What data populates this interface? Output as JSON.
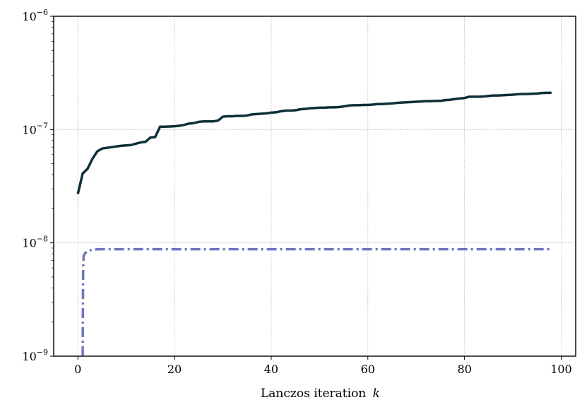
{
  "chart_data": {
    "type": "line",
    "title": "",
    "xlabel": "Lanczos iteration",
    "xlabel_var": "k",
    "ylabel": "",
    "xlim": [
      -5,
      103
    ],
    "ylim": [
      1e-09,
      1e-06
    ],
    "yscale": "log",
    "grid": true,
    "x_ticks": [
      0,
      20,
      40,
      60,
      80,
      100
    ],
    "x_tick_labels": [
      "0",
      "20",
      "40",
      "60",
      "80",
      "100"
    ],
    "y_ticks": [
      {
        "value": 1e-09,
        "base": "10",
        "exp": "−9"
      },
      {
        "value": 1e-08,
        "base": "10",
        "exp": "−8"
      },
      {
        "value": 1e-07,
        "base": "10",
        "exp": "−7"
      },
      {
        "value": 1e-06,
        "base": "10",
        "exp": "−6"
      }
    ],
    "series": [
      {
        "color": "#0d2f38",
        "style": "solid",
        "x": [
          0,
          1,
          2,
          3,
          4,
          5,
          6,
          7,
          8,
          9,
          10,
          11,
          12,
          13,
          14,
          15,
          16,
          17,
          18,
          19,
          20,
          21,
          22,
          23,
          24,
          25,
          26,
          27,
          28,
          29,
          30,
          31,
          32,
          33,
          34,
          35,
          36,
          37,
          38,
          39,
          40,
          41,
          42,
          43,
          44,
          45,
          46,
          47,
          48,
          49,
          50,
          51,
          52,
          53,
          54,
          55,
          56,
          57,
          58,
          59,
          60,
          61,
          62,
          63,
          64,
          65,
          66,
          67,
          68,
          69,
          70,
          71,
          72,
          73,
          74,
          75,
          76,
          77,
          78,
          79,
          80,
          81,
          82,
          83,
          84,
          85,
          86,
          87,
          88,
          89,
          90,
          91,
          92,
          93,
          94,
          95,
          96,
          97,
          98
        ],
        "y": [
          2.7e-08,
          4.1e-08,
          4.5e-08,
          5.5e-08,
          6.4e-08,
          6.8e-08,
          6.9e-08,
          7e-08,
          7.1e-08,
          7.2e-08,
          7.25e-08,
          7.3e-08,
          7.5e-08,
          7.7e-08,
          7.8e-08,
          8.5e-08,
          8.6e-08,
          1.06e-07,
          1.06e-07,
          1.065e-07,
          1.07e-07,
          1.08e-07,
          1.1e-07,
          1.13e-07,
          1.14e-07,
          1.17e-07,
          1.18e-07,
          1.18e-07,
          1.18e-07,
          1.2e-07,
          1.3e-07,
          1.31e-07,
          1.31e-07,
          1.32e-07,
          1.32e-07,
          1.33e-07,
          1.36e-07,
          1.37e-07,
          1.38e-07,
          1.39e-07,
          1.41e-07,
          1.42e-07,
          1.45e-07,
          1.47e-07,
          1.47e-07,
          1.48e-07,
          1.51e-07,
          1.52e-07,
          1.54e-07,
          1.55e-07,
          1.56e-07,
          1.56e-07,
          1.57e-07,
          1.57e-07,
          1.58e-07,
          1.6e-07,
          1.63e-07,
          1.64e-07,
          1.64e-07,
          1.65e-07,
          1.65e-07,
          1.66e-07,
          1.68e-07,
          1.68e-07,
          1.69e-07,
          1.7e-07,
          1.72e-07,
          1.73e-07,
          1.74e-07,
          1.75e-07,
          1.76e-07,
          1.77e-07,
          1.78e-07,
          1.78e-07,
          1.79e-07,
          1.79e-07,
          1.82e-07,
          1.83e-07,
          1.86e-07,
          1.88e-07,
          1.9e-07,
          1.95e-07,
          1.95e-07,
          1.95e-07,
          1.96e-07,
          1.98e-07,
          2e-07,
          2e-07,
          2.01e-07,
          2.02e-07,
          2.03e-07,
          2.05e-07,
          2.06e-07,
          2.06e-07,
          2.07e-07,
          2.08e-07,
          2.1e-07,
          2.11e-07,
          2.11e-07
        ]
      },
      {
        "color": "#7075c0",
        "style": "dashdot",
        "x": [
          1,
          1.05,
          1.1,
          1.2,
          1.5,
          2,
          3,
          4,
          5,
          6,
          8,
          10,
          20,
          40,
          60,
          80,
          98
        ],
        "y": [
          1e-09,
          3e-09,
          6e-09,
          7.7e-09,
          8.1e-09,
          8.5e-09,
          8.7e-09,
          8.78e-09,
          8.8e-09,
          8.8e-09,
          8.8e-09,
          8.8e-09,
          8.8e-09,
          8.8e-09,
          8.8e-09,
          8.8e-09,
          8.8e-09
        ]
      }
    ]
  }
}
